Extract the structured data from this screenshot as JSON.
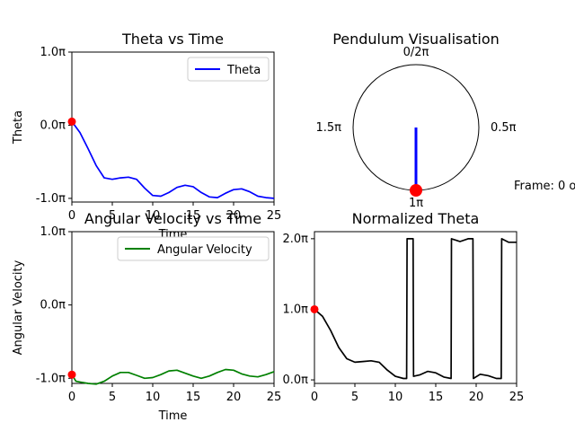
{
  "frame_label": "Frame: 0 o",
  "chart_data": [
    {
      "type": "line",
      "title": "Theta vs Time",
      "xlabel": "Time",
      "ylabel": "Theta",
      "xlim": [
        0,
        25
      ],
      "ylim": [
        -1.05,
        1.0
      ],
      "x_ticks": [
        0,
        5,
        10,
        15,
        20,
        25
      ],
      "y_ticks": [
        {
          "v": 1.0,
          "label": "1.0π"
        },
        {
          "v": 0.0,
          "label": "0.0π"
        },
        {
          "v": -1.0,
          "label": "-1.0π"
        }
      ],
      "legend": "top-right",
      "series": [
        {
          "name": "Theta",
          "color": "#0000ff",
          "x": [
            0,
            1,
            2,
            3,
            4,
            5,
            6,
            7,
            8,
            9,
            10,
            11,
            12,
            13,
            14,
            15,
            16,
            17,
            18,
            19,
            20,
            21,
            22,
            23,
            24,
            25
          ],
          "y": [
            0.05,
            -0.1,
            -0.32,
            -0.55,
            -0.72,
            -0.74,
            -0.72,
            -0.71,
            -0.74,
            -0.86,
            -0.96,
            -0.97,
            -0.92,
            -0.85,
            -0.82,
            -0.84,
            -0.92,
            -0.98,
            -0.99,
            -0.93,
            -0.88,
            -0.87,
            -0.91,
            -0.97,
            -0.99,
            -1.0
          ]
        }
      ],
      "marker": {
        "x": 0,
        "y": 0.05,
        "color": "#ff0000"
      }
    },
    {
      "type": "pendulum",
      "title": "Pendulum Visualisation",
      "angle_labels": {
        "top": "0/2π",
        "right": "0.5π",
        "bottom": "1π",
        "left": "1.5π"
      },
      "theta": 1.0,
      "rod_color": "#0000ff",
      "bob_color": "#ff0000"
    },
    {
      "type": "line",
      "title": "Angular Velocity vs Time",
      "xlabel": "Time",
      "ylabel": "Angular Velocity",
      "xlim": [
        0,
        25
      ],
      "ylim": [
        -1.07,
        1.0
      ],
      "x_ticks": [
        0,
        5,
        10,
        15,
        20,
        25
      ],
      "y_ticks": [
        {
          "v": 1.0,
          "label": "1.0π"
        },
        {
          "v": 0.0,
          "label": "0.0π"
        },
        {
          "v": -1.0,
          "label": "-1.0π"
        }
      ],
      "legend": "top-right",
      "series": [
        {
          "name": "Angular Velocity",
          "color": "#008000",
          "x": [
            0,
            0.5,
            1,
            2,
            3,
            4,
            5,
            6,
            7,
            8,
            9,
            10,
            11,
            12,
            13,
            14,
            15,
            16,
            17,
            18,
            19,
            20,
            21,
            22,
            23,
            24,
            25
          ],
          "y": [
            -0.95,
            -1.04,
            -1.05,
            -1.07,
            -1.08,
            -1.04,
            -0.97,
            -0.92,
            -0.92,
            -0.96,
            -1.0,
            -0.99,
            -0.95,
            -0.9,
            -0.89,
            -0.93,
            -0.97,
            -1.0,
            -0.97,
            -0.92,
            -0.88,
            -0.89,
            -0.94,
            -0.97,
            -0.98,
            -0.95,
            -0.91
          ]
        }
      ],
      "marker": {
        "x": 0,
        "y": -0.95,
        "color": "#ff0000"
      }
    },
    {
      "type": "line",
      "title": "Normalized Theta",
      "xlabel": "",
      "ylabel": "",
      "xlim": [
        0,
        25
      ],
      "ylim": [
        -0.05,
        2.1
      ],
      "x_ticks": [
        0,
        5,
        10,
        15,
        20,
        25
      ],
      "y_ticks": [
        {
          "v": 2.0,
          "label": "2.0π"
        },
        {
          "v": 1.0,
          "label": "1.0π"
        },
        {
          "v": 0.0,
          "label": "0.0π"
        }
      ],
      "series": [
        {
          "name": "",
          "color": "#000000",
          "x": [
            0,
            1,
            2,
            3,
            4,
            5,
            6,
            7,
            8,
            9,
            10,
            11,
            11.4,
            11.45,
            12.2,
            12.25,
            13,
            14,
            15,
            16,
            16.9,
            16.95,
            18,
            19,
            19.6,
            19.65,
            20.5,
            21.5,
            22.5,
            23.1,
            23.15,
            24,
            25
          ],
          "y": [
            1.0,
            0.9,
            0.7,
            0.46,
            0.3,
            0.25,
            0.26,
            0.27,
            0.25,
            0.14,
            0.05,
            0.02,
            0.02,
            2.0,
            2.0,
            0.05,
            0.07,
            0.12,
            0.1,
            0.04,
            0.02,
            2.0,
            1.96,
            2.0,
            2.0,
            0.02,
            0.08,
            0.06,
            0.02,
            0.02,
            2.0,
            1.95,
            1.95
          ]
        }
      ],
      "marker": {
        "x": 0,
        "y": 1.0,
        "color": "#ff0000"
      }
    }
  ]
}
